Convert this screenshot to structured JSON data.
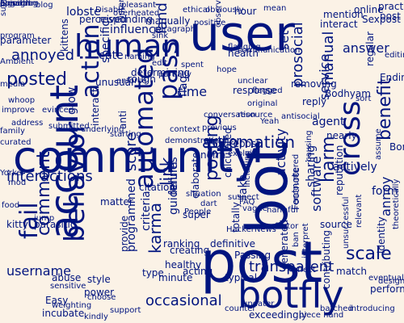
{
  "word_cloud": {
    "text_color": "#00147f",
    "background_color": "#fbf2e6",
    "words": [
      {
        "text": "community",
        "orient": "h"
      },
      {
        "text": "user",
        "orient": "h"
      },
      {
        "text": "human",
        "orient": "h"
      },
      {
        "text": "account",
        "orient": "v"
      },
      {
        "text": "bot",
        "orient": "v"
      },
      {
        "text": "post",
        "orient": "h"
      },
      {
        "text": "botfly",
        "orient": "h"
      },
      {
        "text": "behavior",
        "orient": "v"
      },
      {
        "text": "automated",
        "orient": "v"
      },
      {
        "text": "cross",
        "orient": "v"
      },
      {
        "text": "fail",
        "orient": "v"
      },
      {
        "text": "pass",
        "orient": "v"
      },
      {
        "text": "action",
        "orient": "v"
      },
      {
        "text": "interactions",
        "orient": "h"
      },
      {
        "text": "posted",
        "orient": "h"
      },
      {
        "text": "automation",
        "orient": "h"
      },
      {
        "text": "posting",
        "orient": "v"
      },
      {
        "text": "link",
        "orient": "v"
      },
      {
        "text": "karma",
        "orient": "v"
      },
      {
        "text": "comment",
        "orient": "v"
      },
      {
        "text": "scale",
        "orient": "h"
      },
      {
        "text": "harm",
        "orient": "v"
      },
      {
        "text": "benefit",
        "orient": "v"
      },
      {
        "text": "land",
        "orient": "v"
      },
      {
        "text": "prosocial",
        "orient": "v"
      },
      {
        "text": "manual",
        "orient": "v"
      },
      {
        "text": "annoyed",
        "orient": "h"
      },
      {
        "text": "transparent",
        "orient": "h"
      },
      {
        "text": "username",
        "orient": "h"
      },
      {
        "text": "occasional",
        "orient": "h"
      },
      {
        "text": "flag",
        "orient": "v"
      },
      {
        "text": "score",
        "orient": "v"
      },
      {
        "text": "activity",
        "orient": "v"
      },
      {
        "text": "software",
        "orient": "v"
      },
      {
        "text": "answer",
        "orient": "h"
      },
      {
        "text": "removing",
        "orient": "h"
      },
      {
        "text": "service",
        "orient": "v"
      },
      {
        "text": "lobste",
        "orient": "h"
      },
      {
        "text": "influence",
        "orient": "h"
      },
      {
        "text": "forum",
        "orient": "v"
      },
      {
        "text": "grow",
        "orient": "v"
      },
      {
        "text": "time",
        "orient": "h"
      },
      {
        "text": "cute",
        "orient": "h"
      },
      {
        "text": "set",
        "orient": "v"
      },
      {
        "text": "regular",
        "orient": "v"
      },
      {
        "text": "specific",
        "orient": "v"
      },
      {
        "text": "form",
        "orient": "h"
      },
      {
        "text": "post",
        "orient": "h"
      },
      {
        "text": "reply",
        "orient": "h"
      },
      {
        "text": "nearly",
        "orient": "h"
      },
      {
        "text": "annoy",
        "orient": "v"
      },
      {
        "text": "flagged",
        "orient": "h"
      },
      {
        "text": "norm",
        "orient": "h"
      },
      {
        "text": "author",
        "orient": "h"
      },
      {
        "text": "mention",
        "orient": "h"
      },
      {
        "text": "source",
        "orient": "h"
      },
      {
        "text": "agent",
        "orient": "h"
      },
      {
        "text": "sharing",
        "orient": "v"
      },
      {
        "text": "interact",
        "orient": "v"
      },
      {
        "text": "kittens",
        "orient": "v"
      },
      {
        "text": "determining",
        "orient": "h"
      },
      {
        "text": "partially",
        "orient": "h"
      },
      {
        "text": "communication",
        "orient": "h"
      },
      {
        "text": "online",
        "orient": "h"
      },
      {
        "text": "interact",
        "orient": "h"
      },
      {
        "text": "practice",
        "orient": "h"
      },
      {
        "text": "health",
        "orient": "h"
      },
      {
        "text": "anti",
        "orient": "v"
      },
      {
        "text": "contributing",
        "orient": "v"
      },
      {
        "text": "fake",
        "orient": "v"
      },
      {
        "text": "type",
        "orient": "h"
      },
      {
        "text": "style",
        "orient": "h"
      },
      {
        "text": "power",
        "orient": "h"
      },
      {
        "text": "incubate",
        "orient": "h"
      },
      {
        "text": "weighting",
        "orient": "h"
      },
      {
        "text": "support",
        "orient": "h"
      },
      {
        "text": "updater",
        "orient": "h"
      },
      {
        "text": "exceedingly",
        "orient": "h"
      },
      {
        "text": "piece hand",
        "orient": "h"
      },
      {
        "text": "healthy",
        "orient": "h"
      },
      {
        "text": "counter",
        "orient": "h"
      },
      {
        "text": "match",
        "orient": "h"
      },
      {
        "text": "batched",
        "orient": "h"
      },
      {
        "text": "identity",
        "orient": "v"
      },
      {
        "text": "introducing",
        "orient": "h"
      },
      {
        "text": "provide",
        "orient": "v"
      },
      {
        "text": "abuse",
        "orient": "h"
      },
      {
        "text": "sensitive",
        "orient": "h"
      },
      {
        "text": "choose",
        "orient": "h"
      },
      {
        "text": "Easy",
        "orient": "h"
      },
      {
        "text": "kindly",
        "orient": "h"
      },
      {
        "text": "minute",
        "orient": "h"
      },
      {
        "text": "acting",
        "orient": "h"
      },
      {
        "text": "typical",
        "orient": "h"
      },
      {
        "text": "situation",
        "orient": "h"
      },
      {
        "text": "super",
        "orient": "h"
      },
      {
        "text": "People",
        "orient": "h"
      },
      {
        "text": "ranking",
        "orient": "h"
      },
      {
        "text": "creating",
        "orient": "h"
      },
      {
        "text": "citation",
        "orient": "h"
      },
      {
        "text": "matter",
        "orient": "h"
      },
      {
        "text": "criteria",
        "orient": "v"
      },
      {
        "text": "elaborate",
        "orient": "v"
      },
      {
        "text": "guidelines",
        "orient": "v"
      },
      {
        "text": "programmed",
        "orient": "v"
      },
      {
        "text": "interest",
        "orient": "v"
      },
      {
        "text": "responding",
        "orient": "h"
      },
      {
        "text": "perceived",
        "orient": "h"
      },
      {
        "text": "Disable",
        "orient": "h"
      },
      {
        "text": "blog",
        "orient": "h"
      },
      {
        "text": "program",
        "orient": "h"
      },
      {
        "text": "parameter",
        "orient": "h"
      },
      {
        "text": "Ambient",
        "orient": "h"
      },
      {
        "text": "media",
        "orient": "h"
      },
      {
        "text": "whoop",
        "orient": "h"
      },
      {
        "text": "improve",
        "orient": "h"
      },
      {
        "text": "evinced",
        "orient": "h"
      },
      {
        "text": "address",
        "orient": "h"
      },
      {
        "text": "submitted",
        "orient": "h"
      },
      {
        "text": "underlying",
        "orient": "h"
      },
      {
        "text": "starting",
        "orient": "h"
      },
      {
        "text": "context",
        "orient": "h"
      },
      {
        "text": "demonstrating",
        "orient": "h"
      },
      {
        "text": "family",
        "orient": "h"
      },
      {
        "text": "curated",
        "orient": "h"
      },
      {
        "text": "Yorker",
        "orient": "h"
      },
      {
        "text": "mod",
        "orient": "h"
      },
      {
        "text": "food",
        "orient": "h"
      },
      {
        "text": "kitty",
        "orient": "h"
      },
      {
        "text": "parasitic",
        "orient": "h"
      },
      {
        "text": "jump",
        "orient": "h"
      },
      {
        "text": "naming",
        "orient": "h"
      },
      {
        "text": "edit",
        "orient": "h"
      },
      {
        "text": "spent",
        "orient": "h"
      },
      {
        "text": "hope",
        "orient": "h"
      },
      {
        "text": "hour",
        "orient": "h"
      },
      {
        "text": "response",
        "orient": "h"
      },
      {
        "text": "original",
        "orient": "h"
      },
      {
        "text": "conversation",
        "orient": "h"
      },
      {
        "text": "resource",
        "orient": "h"
      },
      {
        "text": "antisocial",
        "orient": "h"
      },
      {
        "text": "previous",
        "orient": "h"
      },
      {
        "text": "Yeah",
        "orient": "h"
      },
      {
        "text": "repost",
        "orient": "h"
      },
      {
        "text": "explain",
        "orient": "h"
      },
      {
        "text": "calculated",
        "orient": "v"
      },
      {
        "text": "including",
        "orient": "v"
      },
      {
        "text": "actively",
        "orient": "h"
      },
      {
        "text": "Bonus",
        "orient": "h"
      },
      {
        "text": "performed",
        "orient": "h"
      },
      {
        "text": "designed",
        "orient": "h"
      },
      {
        "text": "relevant",
        "orient": "v"
      },
      {
        "text": "theoretically",
        "orient": "v"
      },
      {
        "text": "harmful",
        "orient": "h"
      },
      {
        "text": "factor",
        "orient": "h"
      },
      {
        "text": "FAQ",
        "orient": "h"
      },
      {
        "text": "Footnote",
        "orient": "v"
      },
      {
        "text": "HackerNews",
        "orient": "h"
      },
      {
        "text": "Passing",
        "orient": "h"
      },
      {
        "text": "definitive",
        "orient": "h"
      },
      {
        "text": "reputation",
        "orient": "v"
      },
      {
        "text": "suspect",
        "orient": "h"
      },
      {
        "text": "encountered",
        "orient": "v"
      },
      {
        "text": "totally",
        "orient": "v"
      },
      {
        "text": "ban",
        "orient": "v"
      },
      {
        "text": "unusual",
        "orient": "h"
      },
      {
        "text": "enforce",
        "orient": "h"
      },
      {
        "text": "obviously",
        "orient": "h"
      },
      {
        "text": "ethical",
        "orient": "h"
      },
      {
        "text": "positive",
        "orient": "h"
      },
      {
        "text": "observation",
        "orient": "v"
      },
      {
        "text": "causing",
        "orient": "v"
      },
      {
        "text": "vague",
        "orient": "h"
      },
      {
        "text": "dart",
        "orient": "h"
      },
      {
        "text": "pleasant",
        "orient": "h"
      },
      {
        "text": "overheated",
        "orient": "h"
      },
      {
        "text": "rough",
        "orient": "h"
      },
      {
        "text": "sink",
        "orient": "h"
      },
      {
        "text": "generated",
        "orient": "v"
      },
      {
        "text": "assume",
        "orient": "v"
      },
      {
        "text": "interpret",
        "orient": "v"
      },
      {
        "text": "effect",
        "orient": "h"
      },
      {
        "text": "unsuccessful",
        "orient": "v"
      },
      {
        "text": "eventually",
        "orient": "h"
      },
      {
        "text": "flagging",
        "orient": "h"
      },
      {
        "text": "unclear",
        "orient": "h"
      },
      {
        "text": "manually",
        "orient": "h"
      },
      {
        "text": "paragraph",
        "orient": "h"
      },
      {
        "text": "sort",
        "orient": "h"
      },
      {
        "text": "mean",
        "orient": "h"
      },
      {
        "text": "Ending",
        "orient": "h"
      },
      {
        "text": "Sexpost",
        "orient": "h"
      },
      {
        "text": "editing",
        "orient": "h"
      },
      {
        "text": "Bodhyam",
        "orient": "h"
      },
      {
        "text": "prevent",
        "orient": "h"
      },
      {
        "text": "engaging",
        "orient": "h"
      },
      {
        "text": "bunch",
        "orient": "h"
      },
      {
        "text": "algorithm",
        "orient": "h"
      },
      {
        "text": "opinion",
        "orient": "h"
      },
      {
        "text": "submission",
        "orient": "v"
      }
    ]
  }
}
